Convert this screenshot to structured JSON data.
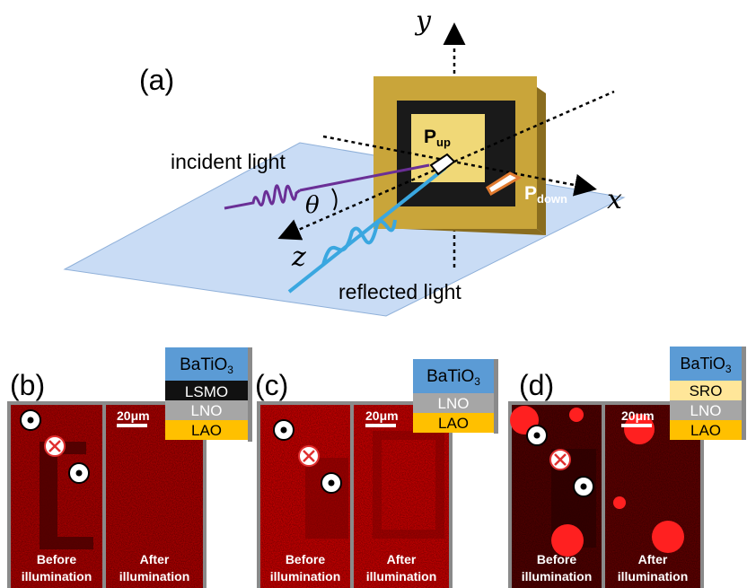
{
  "panel_a": {
    "label": "(a)",
    "incident_light": "incident light",
    "reflected_light": "reflected light",
    "theta": "θ",
    "axis_x": "x",
    "axis_y": "y",
    "axis_z": "z",
    "p_up": {
      "main": "P",
      "sub": "up"
    },
    "p_down": {
      "main": "P",
      "sub": "down"
    }
  },
  "panels": [
    {
      "label": "(b)",
      "layers": [
        "BaTiO",
        "LSMO",
        "LNO",
        "LAO"
      ],
      "subscript": "3",
      "scale": "20μm",
      "left_caption": [
        "Before",
        "illumination"
      ],
      "right_caption": [
        "After",
        "illumination"
      ]
    },
    {
      "label": "(c)",
      "layers": [
        "BaTiO",
        "LNO",
        "LAO"
      ],
      "subscript": "3",
      "scale": "20μm",
      "left_caption": [
        "Before",
        "illumination"
      ],
      "right_caption": [
        "After",
        "illumination"
      ]
    },
    {
      "label": "(d)",
      "layers": [
        "BaTiO",
        "SRO",
        "LNO",
        "LAO"
      ],
      "subscript": "3",
      "scale": "20μm",
      "left_caption": [
        "Before",
        "illumination"
      ],
      "right_caption": [
        "After",
        "illumination"
      ]
    }
  ],
  "colors": {
    "plane": "#c9dcf5",
    "frame_gold": "#c9a53a",
    "inner_black": "#1a1a1a",
    "center_yellow": "#f0d877",
    "incident": "#6a2f96",
    "reflected": "#3aa7e0",
    "batio3": "#5b9bd5",
    "lsmo": "#111111",
    "lno": "#a6a6a6",
    "lao": "#ffc000",
    "sro": "#ffe699",
    "micro_red": "#c80000"
  }
}
